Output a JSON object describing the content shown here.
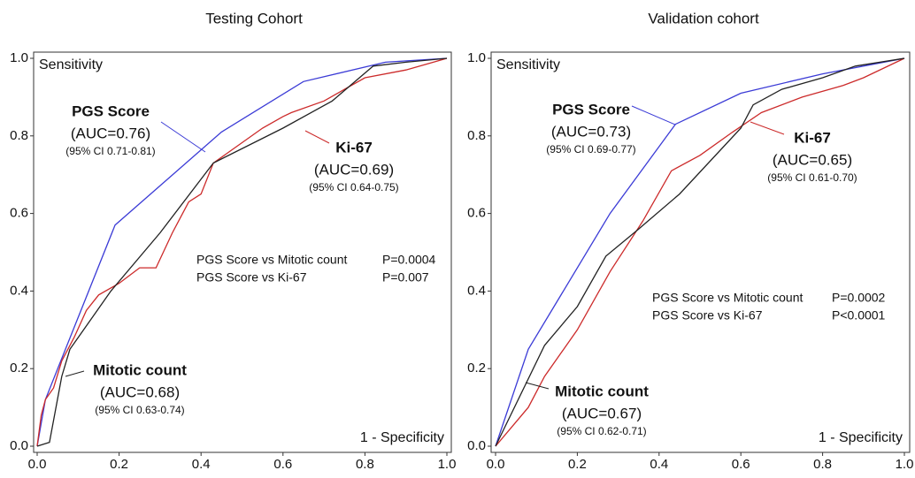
{
  "chart_data": [
    {
      "type": "line",
      "title": "Testing Cohort",
      "y_label": "Sensitivity",
      "x_label": "1 - Specificity",
      "xlim": [
        0,
        1
      ],
      "ylim": [
        0,
        1
      ],
      "xticks": [
        {
          "value": 0,
          "label": "0.0"
        },
        0.2,
        0.4,
        0.6,
        0.8,
        {
          "value": 1,
          "label": "1.0"
        }
      ],
      "yticks": [
        {
          "value": 0,
          "label": "0.0"
        },
        0.2,
        0.4,
        0.6,
        0.8,
        {
          "value": 1,
          "label": "1.0"
        }
      ],
      "grid": false,
      "series": [
        {
          "name": "PGS Score",
          "color": "#3b3bd6",
          "auc": "(AUC=0.76)",
          "ci": "(95% CI 0.71-0.81)",
          "x": [
            0,
            0.02,
            0.05,
            0.19,
            0.45,
            0.65,
            0.85,
            1
          ],
          "values": [
            0,
            0.12,
            0.2,
            0.57,
            0.81,
            0.94,
            0.99,
            1
          ]
        },
        {
          "name": "Ki-67",
          "color": "#cc2a2a",
          "auc": "(AUC=0.69)",
          "ci": "(95% CI 0.64-0.75)",
          "x": [
            0,
            0.01,
            0.02,
            0.04,
            0.06,
            0.09,
            0.12,
            0.15,
            0.2,
            0.25,
            0.29,
            0.33,
            0.37,
            0.4,
            0.43,
            0.47,
            0.55,
            0.6,
            0.62,
            0.7,
            0.75,
            0.8,
            0.9,
            1
          ],
          "values": [
            0,
            0.08,
            0.12,
            0.15,
            0.22,
            0.28,
            0.35,
            0.39,
            0.42,
            0.46,
            0.46,
            0.55,
            0.63,
            0.65,
            0.73,
            0.76,
            0.82,
            0.85,
            0.86,
            0.89,
            0.92,
            0.95,
            0.97,
            1
          ]
        },
        {
          "name": "Mitotic count",
          "color": "#222222",
          "auc": "(AUC=0.68)",
          "ci": "(95% CI 0.63-0.74)",
          "x": [
            0,
            0.03,
            0.06,
            0.08,
            0.18,
            0.3,
            0.43,
            0.6,
            0.72,
            0.82,
            0.9,
            1
          ],
          "values": [
            0,
            0.01,
            0.18,
            0.25,
            0.4,
            0.55,
            0.73,
            0.82,
            0.89,
            0.98,
            0.99,
            1
          ]
        }
      ],
      "comparisons": [
        {
          "label": "PGS Score vs Mitotic count",
          "p": "P=0.0004"
        },
        {
          "label": "PGS Score vs Ki-67",
          "p": "P=0.007"
        }
      ]
    },
    {
      "type": "line",
      "title": "Validation cohort",
      "y_label": "Sensitivity",
      "x_label": "1 - Specificity",
      "xlim": [
        0,
        1
      ],
      "ylim": [
        0,
        1
      ],
      "xticks": [
        {
          "value": 0,
          "label": "0.0"
        },
        0.2,
        0.4,
        0.6,
        0.8,
        {
          "value": 1,
          "label": "1.0"
        }
      ],
      "yticks": [
        {
          "value": 0,
          "label": "0.0"
        },
        0.2,
        0.4,
        0.6,
        0.8,
        {
          "value": 1,
          "label": "1.0"
        }
      ],
      "grid": false,
      "series": [
        {
          "name": "PGS Score",
          "color": "#3b3bd6",
          "auc": "(AUC=0.73)",
          "ci": "(95% CI 0.69-0.77)",
          "x": [
            0,
            0.08,
            0.28,
            0.44,
            0.6,
            0.8,
            1
          ],
          "values": [
            0,
            0.25,
            0.6,
            0.83,
            0.91,
            0.96,
            1
          ]
        },
        {
          "name": "Ki-67",
          "color": "#cc2a2a",
          "auc": "(AUC=0.65)",
          "ci": "(95% CI 0.61-0.70)",
          "x": [
            0,
            0.04,
            0.08,
            0.12,
            0.2,
            0.28,
            0.36,
            0.43,
            0.5,
            0.58,
            0.65,
            0.75,
            0.85,
            0.9,
            1
          ],
          "values": [
            0,
            0.05,
            0.1,
            0.18,
            0.3,
            0.45,
            0.58,
            0.71,
            0.75,
            0.81,
            0.86,
            0.9,
            0.93,
            0.95,
            1
          ]
        },
        {
          "name": "Mitotic count",
          "color": "#222222",
          "auc": "(AUC=0.67)",
          "ci": "(95% CI 0.62-0.71)",
          "x": [
            0,
            0.12,
            0.2,
            0.27,
            0.35,
            0.45,
            0.6,
            0.63,
            0.7,
            0.8,
            0.88,
            1
          ],
          "values": [
            0,
            0.26,
            0.36,
            0.49,
            0.56,
            0.65,
            0.82,
            0.88,
            0.92,
            0.95,
            0.98,
            1
          ]
        }
      ],
      "comparisons": [
        {
          "label": "PGS Score vs Mitotic count",
          "p": "P=0.0002"
        },
        {
          "label": "PGS Score vs Ki-67",
          "p": "P<0.0001"
        }
      ]
    }
  ]
}
